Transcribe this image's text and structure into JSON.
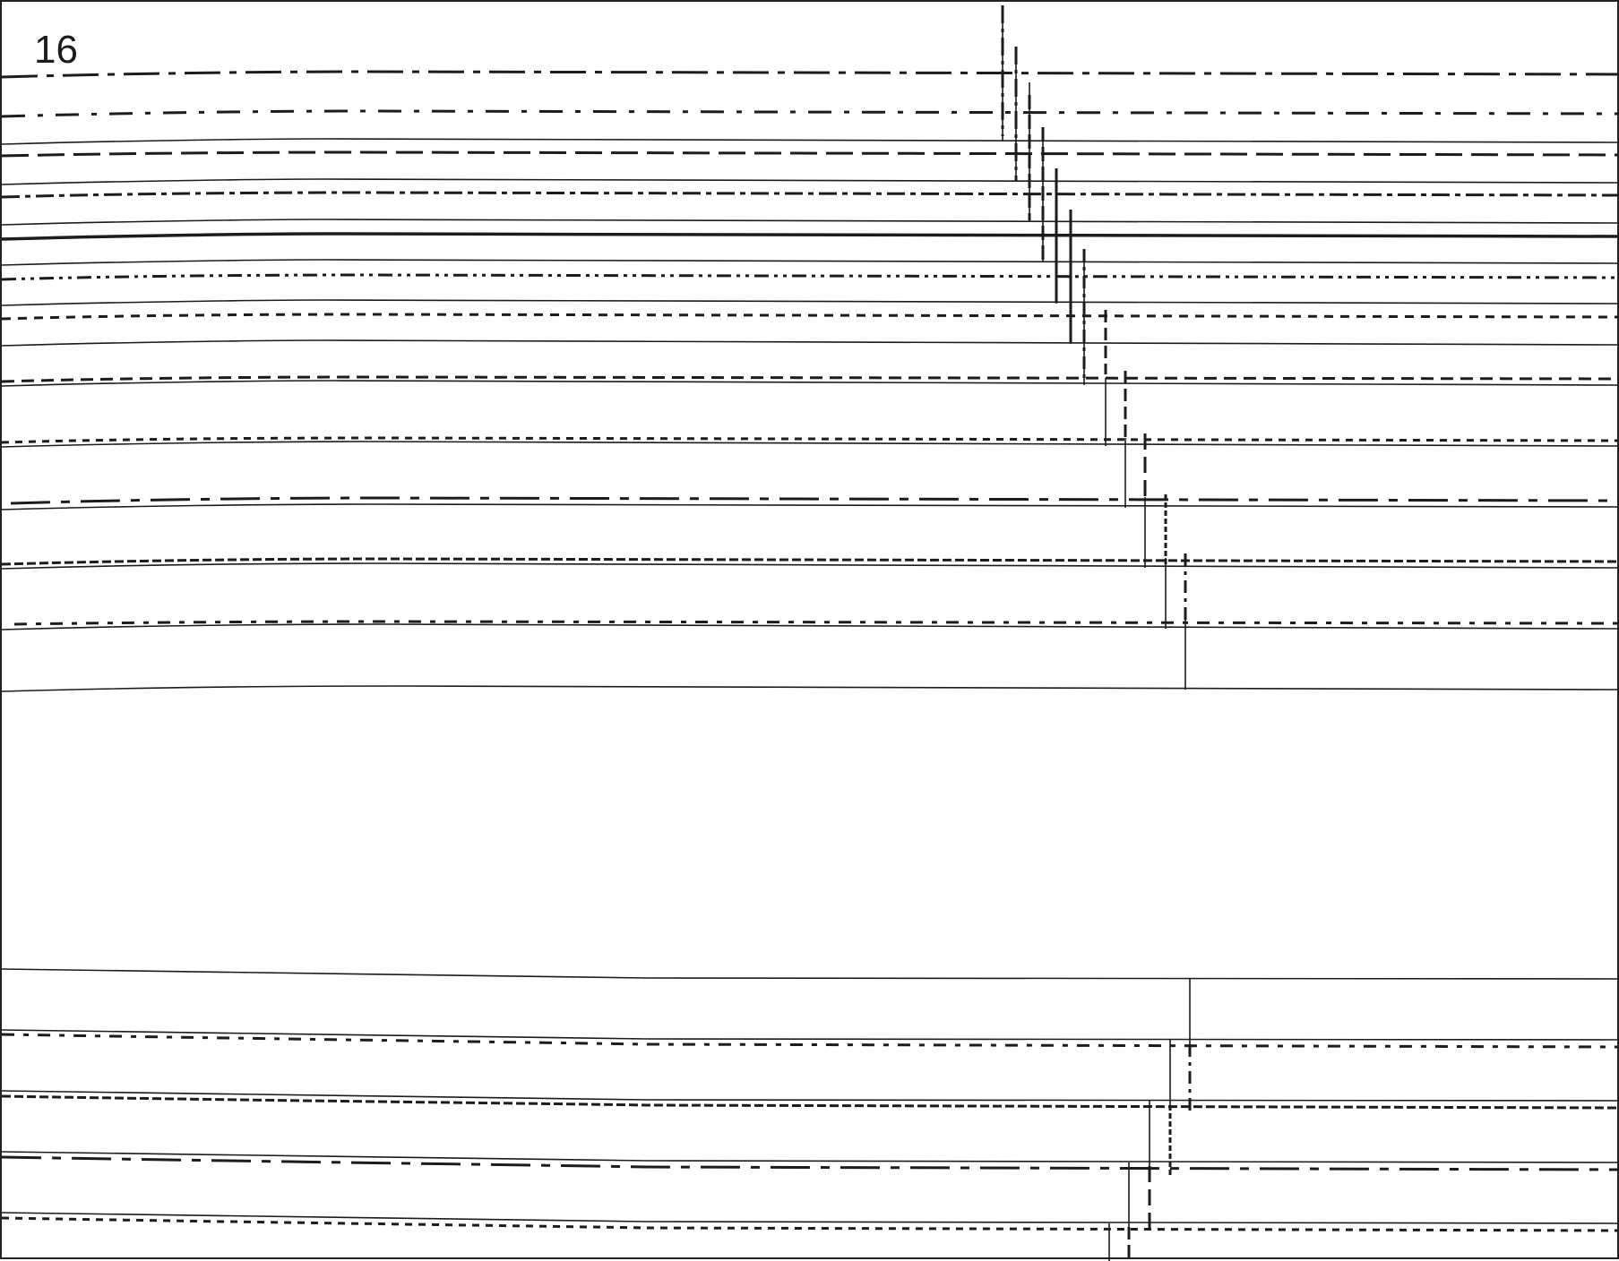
{
  "page": {
    "label": "16"
  },
  "colors": {
    "stroke": "#1c1c1c",
    "background": "#ffffff"
  }
}
